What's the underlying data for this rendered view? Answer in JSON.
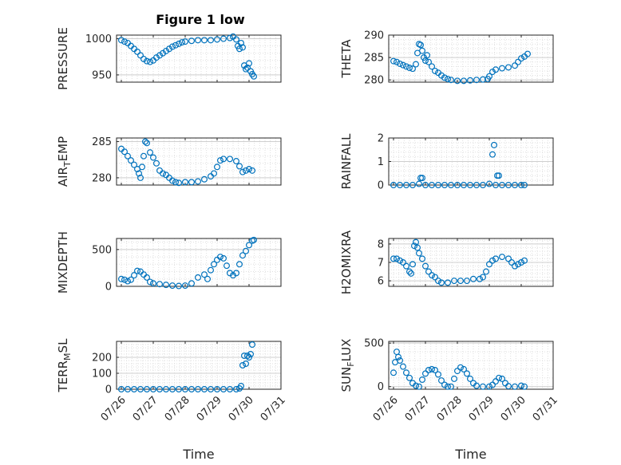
{
  "figure": {
    "title": "Figure 1 low"
  },
  "chart_data": [
    {
      "type": "scatter",
      "ylabel": "PRESSURE",
      "ylim": [
        940,
        1005
      ],
      "yticks": [
        950,
        1000
      ],
      "points": [
        [
          0,
          998
        ],
        [
          0.1,
          996
        ],
        [
          0.2,
          994
        ],
        [
          0.3,
          990
        ],
        [
          0.4,
          986
        ],
        [
          0.5,
          982
        ],
        [
          0.6,
          977
        ],
        [
          0.7,
          972
        ],
        [
          0.8,
          969
        ],
        [
          0.9,
          968
        ],
        [
          1.0,
          970
        ],
        [
          1.1,
          974
        ],
        [
          1.2,
          977
        ],
        [
          1.3,
          980
        ],
        [
          1.4,
          983
        ],
        [
          1.5,
          986
        ],
        [
          1.6,
          989
        ],
        [
          1.7,
          991
        ],
        [
          1.8,
          993
        ],
        [
          1.9,
          995
        ],
        [
          2.0,
          996
        ],
        [
          2.2,
          997
        ],
        [
          2.4,
          998
        ],
        [
          2.6,
          998
        ],
        [
          2.8,
          998
        ],
        [
          3.0,
          999
        ],
        [
          3.2,
          1000
        ],
        [
          3.4,
          1001
        ],
        [
          3.5,
          1003
        ],
        [
          3.6,
          999
        ],
        [
          3.65,
          990
        ],
        [
          3.7,
          986
        ],
        [
          3.75,
          994
        ],
        [
          3.8,
          988
        ],
        [
          3.85,
          963
        ],
        [
          3.9,
          958
        ],
        [
          3.95,
          960
        ],
        [
          4.0,
          966
        ],
        [
          4.05,
          955
        ],
        [
          4.1,
          951
        ],
        [
          4.15,
          948
        ]
      ]
    },
    {
      "type": "scatter",
      "ylabel": "THETA",
      "ylim": [
        279.5,
        290
      ],
      "yticks": [
        280,
        285,
        290
      ],
      "points": [
        [
          0,
          284.2
        ],
        [
          0.1,
          284.0
        ],
        [
          0.2,
          283.6
        ],
        [
          0.3,
          283.3
        ],
        [
          0.4,
          283.0
        ],
        [
          0.5,
          282.7
        ],
        [
          0.6,
          282.5
        ],
        [
          0.7,
          283.5
        ],
        [
          0.75,
          286.0
        ],
        [
          0.8,
          288.0
        ],
        [
          0.85,
          287.8
        ],
        [
          0.9,
          286.5
        ],
        [
          0.95,
          285.0
        ],
        [
          1.0,
          284.3
        ],
        [
          1.05,
          285.5
        ],
        [
          1.1,
          284.0
        ],
        [
          1.2,
          283.0
        ],
        [
          1.3,
          282.0
        ],
        [
          1.4,
          281.6
        ],
        [
          1.5,
          281.0
        ],
        [
          1.6,
          280.5
        ],
        [
          1.7,
          280.2
        ],
        [
          1.8,
          280.0
        ],
        [
          2.0,
          279.8
        ],
        [
          2.2,
          279.8
        ],
        [
          2.4,
          279.9
        ],
        [
          2.6,
          280.0
        ],
        [
          2.8,
          280.1
        ],
        [
          2.95,
          280.2
        ],
        [
          3.0,
          280.8
        ],
        [
          3.1,
          281.8
        ],
        [
          3.2,
          282.3
        ],
        [
          3.4,
          282.6
        ],
        [
          3.6,
          282.8
        ],
        [
          3.8,
          283.2
        ],
        [
          3.9,
          284.0
        ],
        [
          4.0,
          284.8
        ],
        [
          4.1,
          285.2
        ],
        [
          4.2,
          285.8
        ]
      ]
    },
    {
      "type": "scatter",
      "ylabel": "AIR_TEMP",
      "ylabel_parts": [
        "AIR",
        "T",
        "EMP"
      ],
      "ylim": [
        279,
        285.5
      ],
      "yticks": [
        280,
        285
      ],
      "points": [
        [
          0,
          284.0
        ],
        [
          0.1,
          283.6
        ],
        [
          0.2,
          283.0
        ],
        [
          0.3,
          282.4
        ],
        [
          0.4,
          281.8
        ],
        [
          0.5,
          281.2
        ],
        [
          0.55,
          280.6
        ],
        [
          0.6,
          280.0
        ],
        [
          0.65,
          281.5
        ],
        [
          0.7,
          283.0
        ],
        [
          0.75,
          285.0
        ],
        [
          0.8,
          284.8
        ],
        [
          0.9,
          283.5
        ],
        [
          1.0,
          282.8
        ],
        [
          1.1,
          282.0
        ],
        [
          1.2,
          281.0
        ],
        [
          1.3,
          280.6
        ],
        [
          1.4,
          280.4
        ],
        [
          1.5,
          280.0
        ],
        [
          1.6,
          279.6
        ],
        [
          1.7,
          279.4
        ],
        [
          1.8,
          279.3
        ],
        [
          2.0,
          279.4
        ],
        [
          2.2,
          279.4
        ],
        [
          2.4,
          279.5
        ],
        [
          2.6,
          279.8
        ],
        [
          2.8,
          280.2
        ],
        [
          2.9,
          280.6
        ],
        [
          3.0,
          281.5
        ],
        [
          3.1,
          282.4
        ],
        [
          3.2,
          282.6
        ],
        [
          3.4,
          282.6
        ],
        [
          3.6,
          282.3
        ],
        [
          3.7,
          281.6
        ],
        [
          3.8,
          280.8
        ],
        [
          3.9,
          281.0
        ],
        [
          4.0,
          281.2
        ],
        [
          4.1,
          281.0
        ]
      ]
    },
    {
      "type": "scatter",
      "ylabel": "RAINFALL",
      "ylim": [
        0,
        2
      ],
      "yticks": [
        0,
        1,
        2
      ],
      "points": [
        [
          0,
          0
        ],
        [
          0.2,
          0
        ],
        [
          0.4,
          0
        ],
        [
          0.6,
          0
        ],
        [
          0.8,
          0.05
        ],
        [
          0.85,
          0.3
        ],
        [
          0.9,
          0.3
        ],
        [
          1.0,
          0
        ],
        [
          1.2,
          0
        ],
        [
          1.4,
          0
        ],
        [
          1.6,
          0
        ],
        [
          1.8,
          0
        ],
        [
          2.0,
          0
        ],
        [
          2.2,
          0
        ],
        [
          2.4,
          0
        ],
        [
          2.6,
          0
        ],
        [
          2.8,
          0
        ],
        [
          3.0,
          0.05
        ],
        [
          3.1,
          1.3
        ],
        [
          3.15,
          1.7
        ],
        [
          3.2,
          0
        ],
        [
          3.25,
          0.4
        ],
        [
          3.3,
          0.4
        ],
        [
          3.4,
          0
        ],
        [
          3.6,
          0
        ],
        [
          3.8,
          0
        ],
        [
          4.0,
          0
        ],
        [
          4.1,
          0
        ]
      ]
    },
    {
      "type": "scatter",
      "ylabel": "MIXDEPTH",
      "ylim": [
        0,
        650
      ],
      "yticks": [
        0,
        500
      ],
      "points": [
        [
          0,
          100
        ],
        [
          0.1,
          90
        ],
        [
          0.2,
          70
        ],
        [
          0.3,
          90
        ],
        [
          0.4,
          150
        ],
        [
          0.5,
          210
        ],
        [
          0.6,
          200
        ],
        [
          0.7,
          160
        ],
        [
          0.8,
          120
        ],
        [
          0.9,
          60
        ],
        [
          1.0,
          40
        ],
        [
          1.2,
          30
        ],
        [
          1.4,
          20
        ],
        [
          1.6,
          10
        ],
        [
          1.8,
          5
        ],
        [
          2.0,
          10
        ],
        [
          2.2,
          40
        ],
        [
          2.4,
          120
        ],
        [
          2.6,
          160
        ],
        [
          2.7,
          100
        ],
        [
          2.8,
          220
        ],
        [
          2.9,
          300
        ],
        [
          3.0,
          360
        ],
        [
          3.1,
          400
        ],
        [
          3.2,
          380
        ],
        [
          3.3,
          280
        ],
        [
          3.4,
          180
        ],
        [
          3.5,
          150
        ],
        [
          3.6,
          180
        ],
        [
          3.7,
          300
        ],
        [
          3.8,
          420
        ],
        [
          3.9,
          480
        ],
        [
          4.0,
          560
        ],
        [
          4.1,
          620
        ],
        [
          4.15,
          630
        ]
      ]
    },
    {
      "type": "scatter",
      "ylabel": "H2OMIXRA",
      "ylim": [
        5.7,
        8.3
      ],
      "yticks": [
        6,
        7,
        8
      ],
      "points": [
        [
          0,
          7.2
        ],
        [
          0.1,
          7.2
        ],
        [
          0.2,
          7.1
        ],
        [
          0.3,
          7.0
        ],
        [
          0.4,
          6.8
        ],
        [
          0.5,
          6.5
        ],
        [
          0.55,
          6.4
        ],
        [
          0.6,
          6.9
        ],
        [
          0.65,
          7.9
        ],
        [
          0.7,
          8.1
        ],
        [
          0.75,
          7.8
        ],
        [
          0.8,
          7.5
        ],
        [
          0.9,
          7.2
        ],
        [
          1.0,
          6.8
        ],
        [
          1.1,
          6.5
        ],
        [
          1.2,
          6.3
        ],
        [
          1.3,
          6.2
        ],
        [
          1.4,
          6.0
        ],
        [
          1.5,
          5.9
        ],
        [
          1.7,
          5.9
        ],
        [
          1.9,
          6.0
        ],
        [
          2.1,
          6.0
        ],
        [
          2.3,
          6.0
        ],
        [
          2.5,
          6.1
        ],
        [
          2.7,
          6.1
        ],
        [
          2.8,
          6.2
        ],
        [
          2.9,
          6.5
        ],
        [
          3.0,
          6.9
        ],
        [
          3.1,
          7.1
        ],
        [
          3.2,
          7.2
        ],
        [
          3.4,
          7.3
        ],
        [
          3.6,
          7.2
        ],
        [
          3.7,
          7.0
        ],
        [
          3.8,
          6.8
        ],
        [
          3.9,
          6.9
        ],
        [
          4.0,
          7.0
        ],
        [
          4.1,
          7.1
        ]
      ]
    },
    {
      "type": "scatter",
      "ylabel": "TERR_MSL",
      "ylabel_parts": [
        "TERR",
        "M",
        "SL"
      ],
      "ylim": [
        0,
        300
      ],
      "yticks": [
        0,
        100,
        200
      ],
      "points": [
        [
          0,
          0
        ],
        [
          0.2,
          0
        ],
        [
          0.4,
          0
        ],
        [
          0.6,
          0
        ],
        [
          0.8,
          0
        ],
        [
          1.0,
          0
        ],
        [
          1.2,
          0
        ],
        [
          1.4,
          0
        ],
        [
          1.6,
          0
        ],
        [
          1.8,
          0
        ],
        [
          2.0,
          0
        ],
        [
          2.2,
          0
        ],
        [
          2.4,
          0
        ],
        [
          2.6,
          0
        ],
        [
          2.8,
          0
        ],
        [
          3.0,
          0
        ],
        [
          3.2,
          0
        ],
        [
          3.4,
          0
        ],
        [
          3.6,
          0
        ],
        [
          3.7,
          5
        ],
        [
          3.75,
          20
        ],
        [
          3.8,
          150
        ],
        [
          3.85,
          210
        ],
        [
          3.9,
          160
        ],
        [
          3.95,
          210
        ],
        [
          4.0,
          200
        ],
        [
          4.05,
          220
        ],
        [
          4.1,
          280
        ]
      ]
    },
    {
      "type": "scatter",
      "ylabel": "SUN_FLUX",
      "ylabel_parts": [
        "SUN",
        "F",
        "LUX"
      ],
      "ylim": [
        -30,
        520
      ],
      "yticks": [
        0,
        500
      ],
      "points": [
        [
          0,
          160
        ],
        [
          0.05,
          280
        ],
        [
          0.1,
          400
        ],
        [
          0.15,
          340
        ],
        [
          0.2,
          300
        ],
        [
          0.3,
          230
        ],
        [
          0.4,
          160
        ],
        [
          0.5,
          100
        ],
        [
          0.6,
          40
        ],
        [
          0.7,
          10
        ],
        [
          0.8,
          0
        ],
        [
          0.9,
          80
        ],
        [
          1.0,
          150
        ],
        [
          1.1,
          190
        ],
        [
          1.2,
          200
        ],
        [
          1.3,
          190
        ],
        [
          1.4,
          140
        ],
        [
          1.5,
          70
        ],
        [
          1.6,
          20
        ],
        [
          1.7,
          0
        ],
        [
          1.8,
          0
        ],
        [
          1.9,
          90
        ],
        [
          2.0,
          180
        ],
        [
          2.1,
          220
        ],
        [
          2.2,
          200
        ],
        [
          2.3,
          150
        ],
        [
          2.4,
          90
        ],
        [
          2.5,
          40
        ],
        [
          2.6,
          10
        ],
        [
          2.8,
          0
        ],
        [
          3.0,
          0
        ],
        [
          3.1,
          20
        ],
        [
          3.2,
          60
        ],
        [
          3.3,
          100
        ],
        [
          3.4,
          90
        ],
        [
          3.5,
          40
        ],
        [
          3.6,
          5
        ],
        [
          3.8,
          0
        ],
        [
          4.0,
          10
        ],
        [
          4.1,
          0
        ]
      ]
    }
  ],
  "xaxis": {
    "xlim": [
      -0.15,
      5.0
    ],
    "ticks": [
      "07/26",
      "07/27",
      "07/28",
      "07/29",
      "07/30",
      "07/31"
    ],
    "xlabel": "Time"
  },
  "colors": {
    "marker": "#0072BD",
    "axis": "#262626",
    "grid": "#DFDFDF"
  }
}
